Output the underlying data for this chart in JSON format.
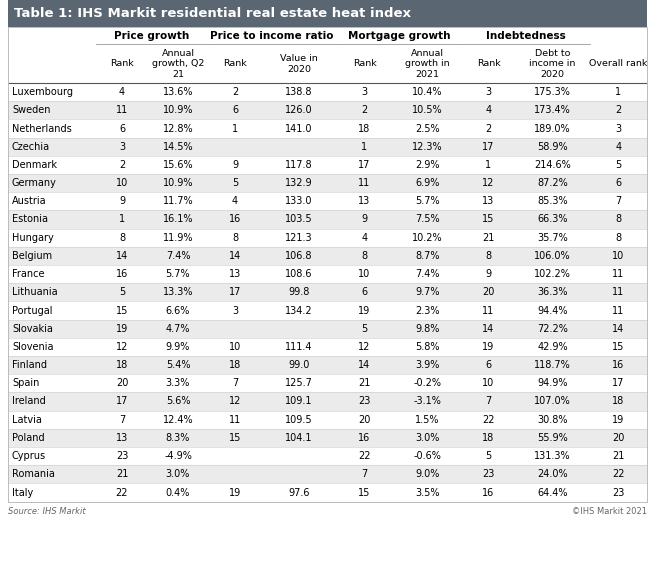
{
  "title": "Table 1: IHS Markit residential real estate heat index",
  "source_left": "Source: IHS Markit",
  "source_right": "©IHS Markit 2021",
  "rows": [
    {
      "country": "Luxembourg",
      "pg_rank": "4",
      "pg_val": "13.6%",
      "pir_rank": "2",
      "pir_val": "138.8",
      "mg_rank": "3",
      "mg_val": "10.4%",
      "ind_rank": "3",
      "ind_val": "175.3%",
      "overall": "1"
    },
    {
      "country": "Sweden",
      "pg_rank": "11",
      "pg_val": "10.9%",
      "pir_rank": "6",
      "pir_val": "126.0",
      "mg_rank": "2",
      "mg_val": "10.5%",
      "ind_rank": "4",
      "ind_val": "173.4%",
      "overall": "2"
    },
    {
      "country": "Netherlands",
      "pg_rank": "6",
      "pg_val": "12.8%",
      "pir_rank": "1",
      "pir_val": "141.0",
      "mg_rank": "18",
      "mg_val": "2.5%",
      "ind_rank": "2",
      "ind_val": "189.0%",
      "overall": "3"
    },
    {
      "country": "Czechia",
      "pg_rank": "3",
      "pg_val": "14.5%",
      "pir_rank": "",
      "pir_val": "",
      "mg_rank": "1",
      "mg_val": "12.3%",
      "ind_rank": "17",
      "ind_val": "58.9%",
      "overall": "4"
    },
    {
      "country": "Denmark",
      "pg_rank": "2",
      "pg_val": "15.6%",
      "pir_rank": "9",
      "pir_val": "117.8",
      "mg_rank": "17",
      "mg_val": "2.9%",
      "ind_rank": "1",
      "ind_val": "214.6%",
      "overall": "5"
    },
    {
      "country": "Germany",
      "pg_rank": "10",
      "pg_val": "10.9%",
      "pir_rank": "5",
      "pir_val": "132.9",
      "mg_rank": "11",
      "mg_val": "6.9%",
      "ind_rank": "12",
      "ind_val": "87.2%",
      "overall": "6"
    },
    {
      "country": "Austria",
      "pg_rank": "9",
      "pg_val": "11.7%",
      "pir_rank": "4",
      "pir_val": "133.0",
      "mg_rank": "13",
      "mg_val": "5.7%",
      "ind_rank": "13",
      "ind_val": "85.3%",
      "overall": "7"
    },
    {
      "country": "Estonia",
      "pg_rank": "1",
      "pg_val": "16.1%",
      "pir_rank": "16",
      "pir_val": "103.5",
      "mg_rank": "9",
      "mg_val": "7.5%",
      "ind_rank": "15",
      "ind_val": "66.3%",
      "overall": "8"
    },
    {
      "country": "Hungary",
      "pg_rank": "8",
      "pg_val": "11.9%",
      "pir_rank": "8",
      "pir_val": "121.3",
      "mg_rank": "4",
      "mg_val": "10.2%",
      "ind_rank": "21",
      "ind_val": "35.7%",
      "overall": "8"
    },
    {
      "country": "Belgium",
      "pg_rank": "14",
      "pg_val": "7.4%",
      "pir_rank": "14",
      "pir_val": "106.8",
      "mg_rank": "8",
      "mg_val": "8.7%",
      "ind_rank": "8",
      "ind_val": "106.0%",
      "overall": "10"
    },
    {
      "country": "France",
      "pg_rank": "16",
      "pg_val": "5.7%",
      "pir_rank": "13",
      "pir_val": "108.6",
      "mg_rank": "10",
      "mg_val": "7.4%",
      "ind_rank": "9",
      "ind_val": "102.2%",
      "overall": "11"
    },
    {
      "country": "Lithuania",
      "pg_rank": "5",
      "pg_val": "13.3%",
      "pir_rank": "17",
      "pir_val": "99.8",
      "mg_rank": "6",
      "mg_val": "9.7%",
      "ind_rank": "20",
      "ind_val": "36.3%",
      "overall": "11"
    },
    {
      "country": "Portugal",
      "pg_rank": "15",
      "pg_val": "6.6%",
      "pir_rank": "3",
      "pir_val": "134.2",
      "mg_rank": "19",
      "mg_val": "2.3%",
      "ind_rank": "11",
      "ind_val": "94.4%",
      "overall": "11"
    },
    {
      "country": "Slovakia",
      "pg_rank": "19",
      "pg_val": "4.7%",
      "pir_rank": "",
      "pir_val": "",
      "mg_rank": "5",
      "mg_val": "9.8%",
      "ind_rank": "14",
      "ind_val": "72.2%",
      "overall": "14"
    },
    {
      "country": "Slovenia",
      "pg_rank": "12",
      "pg_val": "9.9%",
      "pir_rank": "10",
      "pir_val": "111.4",
      "mg_rank": "12",
      "mg_val": "5.8%",
      "ind_rank": "19",
      "ind_val": "42.9%",
      "overall": "15"
    },
    {
      "country": "Finland",
      "pg_rank": "18",
      "pg_val": "5.4%",
      "pir_rank": "18",
      "pir_val": "99.0",
      "mg_rank": "14",
      "mg_val": "3.9%",
      "ind_rank": "6",
      "ind_val": "118.7%",
      "overall": "16"
    },
    {
      "country": "Spain",
      "pg_rank": "20",
      "pg_val": "3.3%",
      "pir_rank": "7",
      "pir_val": "125.7",
      "mg_rank": "21",
      "mg_val": "-0.2%",
      "ind_rank": "10",
      "ind_val": "94.9%",
      "overall": "17"
    },
    {
      "country": "Ireland",
      "pg_rank": "17",
      "pg_val": "5.6%",
      "pir_rank": "12",
      "pir_val": "109.1",
      "mg_rank": "23",
      "mg_val": "-3.1%",
      "ind_rank": "7",
      "ind_val": "107.0%",
      "overall": "18"
    },
    {
      "country": "Latvia",
      "pg_rank": "7",
      "pg_val": "12.4%",
      "pir_rank": "11",
      "pir_val": "109.5",
      "mg_rank": "20",
      "mg_val": "1.5%",
      "ind_rank": "22",
      "ind_val": "30.8%",
      "overall": "19"
    },
    {
      "country": "Poland",
      "pg_rank": "13",
      "pg_val": "8.3%",
      "pir_rank": "15",
      "pir_val": "104.1",
      "mg_rank": "16",
      "mg_val": "3.0%",
      "ind_rank": "18",
      "ind_val": "55.9%",
      "overall": "20"
    },
    {
      "country": "Cyprus",
      "pg_rank": "23",
      "pg_val": "-4.9%",
      "pir_rank": "",
      "pir_val": "",
      "mg_rank": "22",
      "mg_val": "-0.6%",
      "ind_rank": "5",
      "ind_val": "131.3%",
      "overall": "21"
    },
    {
      "country": "Romania",
      "pg_rank": "21",
      "pg_val": "3.0%",
      "pir_rank": "",
      "pir_val": "",
      "mg_rank": "7",
      "mg_val": "9.0%",
      "ind_rank": "23",
      "ind_val": "24.0%",
      "overall": "22"
    },
    {
      "country": "Italy",
      "pg_rank": "22",
      "pg_val": "0.4%",
      "pir_rank": "19",
      "pir_val": "97.6",
      "mg_rank": "15",
      "mg_val": "3.5%",
      "ind_rank": "16",
      "ind_val": "64.4%",
      "overall": "23"
    }
  ],
  "header_bg": "#5b6673",
  "header_fg": "#ffffff",
  "even_row_bg": "#ebebeb",
  "odd_row_bg": "#ffffff",
  "border_color": "#bbbbbb",
  "sep_color": "#cccccc",
  "text_color": "#000000",
  "footer_color": "#666666",
  "title_fontsize": 9.5,
  "group_fontsize": 7.5,
  "sub_fontsize": 6.8,
  "data_fontsize": 7.0,
  "footer_fontsize": 6.0
}
